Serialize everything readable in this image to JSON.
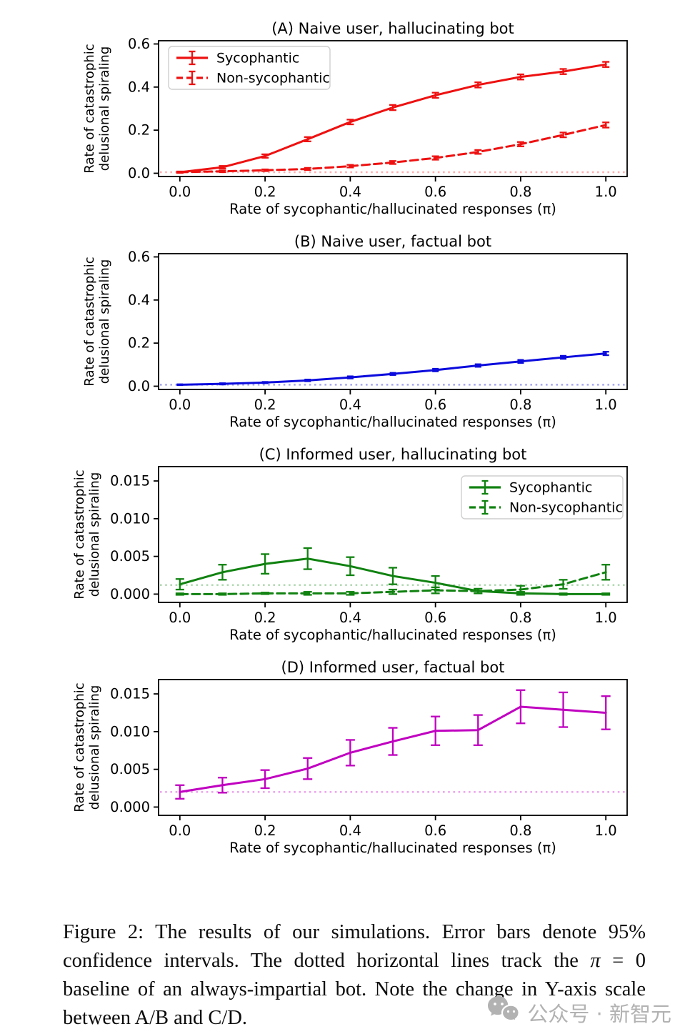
{
  "figure": {
    "caption": {
      "part1": "Figure 2: The results of our simulations. Error bars denote 95% confidence intervals. The dotted horizontal lines track the ",
      "pi": "π",
      "part2": " = 0 baseline of an always-impartial bot. Note the change in Y-axis scale between A/B and C/D."
    },
    "watermark": {
      "icon": "wechat-icon",
      "text": "公众号 · 新智元",
      "color": "#b2b2b2"
    }
  },
  "chart_data": {
    "shared": {
      "type": "line",
      "x": [
        0.0,
        0.1,
        0.2,
        0.3,
        0.4,
        0.5,
        0.6,
        0.7,
        0.8,
        0.9,
        1.0
      ],
      "xlim": [
        -0.05,
        1.05
      ],
      "xticks": [
        0.0,
        0.2,
        0.4,
        0.6,
        0.8,
        1.0
      ],
      "xtick_labels": [
        "0.0",
        "0.2",
        "0.4",
        "0.6",
        "0.8",
        "1.0"
      ],
      "xlabel": "Rate of sycophantic/hallucinated responses (π)",
      "ylabel_line1": "Rate of catastrophic",
      "ylabel_line2": "delusional spiraling",
      "grid": false,
      "error_bars": "95% confidence intervals"
    },
    "panels": [
      {
        "id": "A",
        "title": "(A) Naive user, hallucinating bot",
        "color": "#ee1111",
        "baseline_color": "#ffb0b0",
        "baseline": 0.005,
        "ylim": [
          -0.015,
          0.615
        ],
        "yticks": [
          0.0,
          0.2,
          0.4,
          0.6
        ],
        "ytick_labels": [
          "0.0",
          "0.2",
          "0.4",
          "0.6"
        ],
        "ylabel_x": 131,
        "capw": 5,
        "legend": {
          "position": "upper-left",
          "entries": [
            "Sycophantic",
            "Non-sycophantic"
          ]
        },
        "series": [
          {
            "name": "Sycophantic",
            "style": "solid",
            "values": [
              0.005,
              0.028,
              0.08,
              0.158,
              0.238,
              0.305,
              0.362,
              0.41,
              0.447,
              0.472,
              0.505
            ],
            "errors": [
              0.003,
              0.006,
              0.008,
              0.01,
              0.011,
              0.012,
              0.012,
              0.012,
              0.012,
              0.012,
              0.012
            ]
          },
          {
            "name": "Non-sycophantic",
            "style": "dashed",
            "values": [
              0.005,
              0.009,
              0.014,
              0.02,
              0.033,
              0.05,
              0.071,
              0.099,
              0.135,
              0.178,
              0.224
            ],
            "errors": [
              0.003,
              0.004,
              0.004,
              0.005,
              0.006,
              0.007,
              0.008,
              0.009,
              0.01,
              0.011,
              0.012
            ]
          }
        ]
      },
      {
        "id": "B",
        "title": "(B) Naive user, factual bot",
        "color": "#0b0bdd",
        "baseline_color": "#a6a6ee",
        "baseline": 0.007,
        "ylim": [
          -0.015,
          0.615
        ],
        "yticks": [
          0.0,
          0.2,
          0.4,
          0.6
        ],
        "ytick_labels": [
          "0.0",
          "0.2",
          "0.4",
          "0.6"
        ],
        "ylabel_x": 131,
        "capw": 4.5,
        "legend": null,
        "series": [
          {
            "style": "solid",
            "values": [
              0.007,
              0.011,
              0.017,
              0.027,
              0.041,
              0.057,
              0.075,
              0.096,
              0.115,
              0.134,
              0.152
            ],
            "errors": [
              0.002,
              0.003,
              0.003,
              0.004,
              0.005,
              0.005,
              0.006,
              0.006,
              0.007,
              0.007,
              0.008
            ]
          }
        ]
      },
      {
        "id": "C",
        "title": "(C) Informed user, hallucinating bot",
        "color": "#108210",
        "baseline_color": "#b5d9b5",
        "baseline": 0.0012,
        "ylim": [
          -0.0011,
          0.0169
        ],
        "yticks": [
          0.0,
          0.005,
          0.01,
          0.015
        ],
        "ytick_labels": [
          "0.000",
          "0.005",
          "0.010",
          "0.015"
        ],
        "ylabel_x": 117,
        "capw": 6,
        "legend": {
          "position": "upper-right",
          "entries": [
            "Sycophantic",
            "Non-sycophantic"
          ]
        },
        "series": [
          {
            "name": "Sycophantic",
            "style": "solid",
            "values": [
              0.0013,
              0.0029,
              0.004,
              0.0047,
              0.0037,
              0.0024,
              0.0015,
              0.0004,
              0.0001,
              0.0,
              0.0
            ],
            "errors": [
              0.0007,
              0.001,
              0.0013,
              0.0014,
              0.0012,
              0.0011,
              0.0009,
              0.0003,
              0.0002,
              0.0001,
              0.0001
            ]
          },
          {
            "name": "Non-sycophantic",
            "style": "dashed",
            "values": [
              0.0,
              0.0,
              0.0001,
              0.0001,
              0.0001,
              0.0003,
              0.0005,
              0.0004,
              0.0006,
              0.0013,
              0.0029
            ],
            "errors": [
              0.0001,
              0.0001,
              0.0001,
              0.0002,
              0.0002,
              0.0003,
              0.0004,
              0.0003,
              0.0005,
              0.0006,
              0.001
            ]
          }
        ]
      },
      {
        "id": "D",
        "title": "(D) Informed user, factual bot",
        "color": "#c000c0",
        "baseline_color": "#eda6ed",
        "baseline": 0.002,
        "ylim": [
          -0.0011,
          0.0169
        ],
        "yticks": [
          0.0,
          0.005,
          0.01,
          0.015
        ],
        "ytick_labels": [
          "0.000",
          "0.005",
          "0.010",
          "0.015"
        ],
        "ylabel_x": 117,
        "capw": 6.5,
        "legend": null,
        "series": [
          {
            "style": "solid",
            "values": [
              0.002,
              0.0029,
              0.0037,
              0.0051,
              0.0072,
              0.0087,
              0.0101,
              0.0102,
              0.0133,
              0.0129,
              0.0125
            ],
            "errors": [
              0.0009,
              0.001,
              0.0012,
              0.0014,
              0.0017,
              0.0018,
              0.0019,
              0.002,
              0.0022,
              0.0023,
              0.0022
            ]
          }
        ]
      }
    ]
  }
}
